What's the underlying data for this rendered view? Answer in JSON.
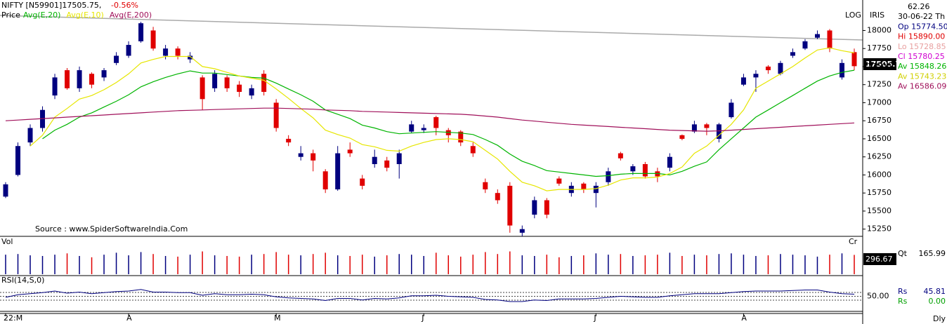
{
  "chart_data": {
    "type": "candlestick",
    "title": "NIFTY [N59901]17505.75,",
    "change": "-0.56%",
    "price_label": "Price",
    "scale_label": "LOG",
    "indicator_label": "IRIS",
    "source": "Source : www.SpiderSoftwareIndia.Com",
    "last_label": "17505.7",
    "frequency": "Dly",
    "up_color": "#00007f",
    "down_color": "#e00000",
    "categories": [
      "22:M",
      null,
      null,
      null,
      null,
      null,
      null,
      null,
      null,
      null,
      "A",
      null,
      null,
      null,
      null,
      null,
      null,
      null,
      null,
      null,
      null,
      null,
      "M",
      null,
      null,
      null,
      null,
      null,
      null,
      null,
      null,
      null,
      null,
      null,
      "J",
      null,
      null,
      null,
      null,
      null,
      null,
      null,
      null,
      null,
      null,
      null,
      null,
      null,
      "J",
      null,
      null,
      null,
      null,
      null,
      null,
      null,
      null,
      null,
      null,
      null,
      "A",
      null,
      null,
      null,
      null,
      null,
      null,
      null,
      null,
      null
    ],
    "open": [
      15700,
      16000,
      16450,
      16650,
      17100,
      17450,
      17200,
      17400,
      17350,
      17550,
      17650,
      17850,
      18000,
      17650,
      17750,
      17600,
      17350,
      17200,
      17350,
      17250,
      17100,
      17400,
      17000,
      16500,
      16250,
      16300,
      16050,
      15800,
      16350,
      15950,
      16150,
      16200,
      16150,
      16600,
      16620,
      16800,
      16620,
      16600,
      16400,
      15900,
      15750,
      15850,
      15200,
      15450,
      15650,
      15950,
      15750,
      15880,
      15750,
      15900,
      16300,
      16050,
      16150,
      16050,
      16100,
      16550,
      16600,
      16700,
      16500,
      16800,
      17250,
      17350,
      17500,
      17400,
      17650,
      17750,
      17900,
      18000,
      17350,
      17700
    ],
    "high": [
      15900,
      16450,
      16700,
      16950,
      17400,
      17480,
      17500,
      17420,
      17480,
      17700,
      17850,
      18120,
      18050,
      17800,
      17780,
      17700,
      17380,
      17450,
      17380,
      17300,
      17250,
      17450,
      17050,
      16550,
      16400,
      16350,
      16080,
      16400,
      16450,
      16000,
      16350,
      16250,
      16350,
      16750,
      16700,
      16820,
      16650,
      16620,
      16450,
      15950,
      15800,
      15900,
      15300,
      15700,
      15680,
      15980,
      15900,
      15900,
      15900,
      16100,
      16320,
      16150,
      16180,
      16100,
      16300,
      16560,
      16750,
      16720,
      16720,
      17050,
      17400,
      17450,
      17520,
      17580,
      17750,
      17880,
      18000,
      18020,
      17600,
      17750
    ],
    "low": [
      15680,
      15980,
      16400,
      16600,
      17050,
      17180,
      17150,
      17200,
      17300,
      17520,
      17620,
      17830,
      17720,
      17600,
      17600,
      17550,
      16900,
      17150,
      17150,
      17080,
      17050,
      17100,
      16600,
      16400,
      16200,
      16050,
      15750,
      15780,
      16250,
      15800,
      16100,
      16050,
      15950,
      16580,
      16580,
      16550,
      16450,
      16400,
      16250,
      15750,
      15600,
      15200,
      15150,
      15400,
      15400,
      15850,
      15700,
      15750,
      15550,
      15850,
      16200,
      16000,
      15950,
      15900,
      16050,
      16480,
      16580,
      16550,
      16450,
      16780,
      17230,
      17150,
      17400,
      17380,
      17620,
      17730,
      17880,
      17700,
      17320,
      17450
    ],
    "close": [
      15870,
      16400,
      16650,
      16900,
      17350,
      17200,
      17450,
      17250,
      17450,
      17650,
      17800,
      18100,
      17750,
      17750,
      17650,
      17650,
      17050,
      17400,
      17200,
      17150,
      17200,
      17150,
      16650,
      16450,
      16300,
      16200,
      15800,
      16300,
      16300,
      15850,
      16250,
      16100,
      16300,
      16700,
      16650,
      16650,
      16550,
      16450,
      16300,
      15800,
      15650,
      15300,
      15250,
      15650,
      15450,
      15880,
      15850,
      15800,
      15850,
      16050,
      16230,
      16120,
      15980,
      15980,
      16250,
      16500,
      16700,
      16650,
      16700,
      17000,
      17350,
      17400,
      17450,
      17550,
      17700,
      17850,
      17950,
      17750,
      17550,
      17505.75
    ],
    "series": [
      {
        "name": "Avg(E,20)",
        "color": "#00b400",
        "values": [
          null,
          null,
          null,
          16500,
          16620,
          16700,
          16800,
          16860,
          16940,
          17020,
          17110,
          17220,
          17290,
          17350,
          17400,
          17440,
          17410,
          17410,
          17390,
          17370,
          17350,
          17340,
          17270,
          17190,
          17110,
          17020,
          16900,
          16840,
          16780,
          16690,
          16650,
          16600,
          16570,
          16580,
          16590,
          16600,
          16590,
          16580,
          16560,
          16490,
          16410,
          16290,
          16190,
          16130,
          16060,
          16040,
          16020,
          16000,
          15980,
          15990,
          16010,
          16020,
          16020,
          16020,
          16000,
          16050,
          16120,
          16180,
          16350,
          16500,
          16650,
          16800,
          16900,
          17000,
          17100,
          17200,
          17300,
          17370,
          17420,
          17450
        ]
      },
      {
        "name": "Avg(E,10)",
        "color": "#e6e600",
        "values": [
          null,
          null,
          16400,
          16550,
          16800,
          16920,
          17050,
          17100,
          17180,
          17280,
          17400,
          17550,
          17600,
          17640,
          17640,
          17640,
          17500,
          17470,
          17420,
          17370,
          17340,
          17310,
          17190,
          17060,
          16920,
          16790,
          16620,
          16560,
          16510,
          16420,
          16390,
          16340,
          16330,
          16400,
          16450,
          16490,
          16500,
          16490,
          16460,
          16340,
          16220,
          16050,
          15900,
          15850,
          15780,
          15800,
          15800,
          15800,
          15810,
          15860,
          15930,
          15960,
          15960,
          15970,
          16020,
          16110,
          16300,
          16400,
          16550,
          16700,
          16900,
          17200,
          17300,
          17400,
          17500,
          17620,
          17730,
          17760,
          17720,
          17690
        ]
      },
      {
        "name": "Avg(E,200)",
        "color": "#a0105a",
        "values": [
          16750,
          16760,
          16770,
          16780,
          16790,
          16800,
          16810,
          16820,
          16830,
          16840,
          16850,
          16860,
          16870,
          16880,
          16890,
          16895,
          16900,
          16905,
          16910,
          16915,
          16920,
          16925,
          16925,
          16920,
          16915,
          16910,
          16900,
          16895,
          16890,
          16880,
          16875,
          16870,
          16865,
          16860,
          16855,
          16850,
          16845,
          16840,
          16830,
          16815,
          16800,
          16780,
          16760,
          16745,
          16730,
          16715,
          16700,
          16690,
          16680,
          16670,
          16660,
          16650,
          16640,
          16630,
          16620,
          16615,
          16610,
          16605,
          16610,
          16620,
          16630,
          16640,
          16650,
          16660,
          16670,
          16680,
          16690,
          16700,
          16710,
          16720
        ]
      }
    ],
    "ylim": [
      15150,
      18150
    ],
    "yticks": [
      15250,
      15500,
      15750,
      16000,
      16250,
      16500,
      16750,
      17000,
      17250,
      17500,
      17750,
      18000
    ],
    "volume": {
      "label": "Vol",
      "side_label": "Cr",
      "last_label": "296.67",
      "ylim": [
        0,
        420
      ],
      "values": [
        300,
        310,
        290,
        280,
        300,
        320,
        280,
        260,
        300,
        330,
        290,
        340,
        310,
        280,
        270,
        300,
        350,
        290,
        280,
        270,
        300,
        310,
        340,
        300,
        290,
        310,
        330,
        290,
        280,
        300,
        270,
        290,
        310,
        300,
        280,
        330,
        290,
        270,
        300,
        340,
        310,
        350,
        290,
        280,
        300,
        260,
        280,
        290,
        320,
        300,
        310,
        280,
        290,
        300,
        330,
        280,
        300,
        290,
        310,
        320,
        300,
        280,
        290,
        310,
        300,
        290,
        270,
        300,
        320,
        296.67
      ]
    },
    "rsi": {
      "label": "RSI(14,S,0)",
      "color": "#00007f",
      "ylim": [
        20,
        80
      ],
      "yticks": [
        {
          "value": 50,
          "label": "50.00"
        }
      ],
      "values": [
        48,
        53,
        55,
        57,
        60,
        56,
        58,
        55,
        57,
        59,
        60,
        63,
        58,
        58,
        57,
        57,
        52,
        55,
        53,
        53,
        54,
        53,
        49,
        47,
        46,
        45,
        42,
        46,
        46,
        43,
        46,
        45,
        47,
        51,
        51,
        52,
        50,
        49,
        48,
        44,
        43,
        40,
        40,
        43,
        42,
        45,
        45,
        45,
        46,
        48,
        50,
        49,
        48,
        48,
        51,
        53,
        55,
        55,
        55,
        57,
        59,
        60,
        60,
        60,
        61,
        62,
        62,
        58,
        55,
        54
      ]
    }
  },
  "info": [
    {
      "text": "62.26",
      "color": "#000000"
    },
    {
      "text": "30-06-22 Th",
      "color": "#000000"
    },
    {
      "text": "Op 15774.50",
      "color": "#00007f"
    },
    {
      "text": "Hi 15890.00",
      "color": "#e00000"
    },
    {
      "text": "Lo 15728.85",
      "color": "#e8a0a0"
    },
    {
      "text": "Cl 15780.25",
      "color": "#d000d0"
    },
    {
      "text": "Av 15848.26",
      "color": "#00b400"
    },
    {
      "text": "Av 15743.23",
      "color": "#d0d000"
    },
    {
      "text": "Av 16586.09",
      "color": "#a0105a"
    }
  ],
  "side_info": {
    "qt": "Qt",
    "qt_value": "165.99",
    "rs1": "Rs",
    "rs1_value": "45.81",
    "rs2": "Rs",
    "rs2_value": "0.00"
  }
}
